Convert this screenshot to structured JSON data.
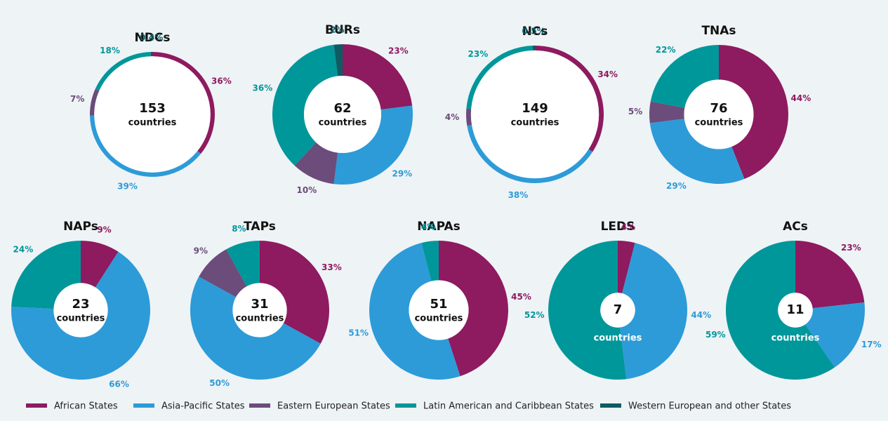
{
  "chart_data": [
    {
      "type": "pie",
      "title": "NDCs",
      "center_value": 153,
      "center_label": "countries",
      "values": [
        36,
        39,
        7,
        18,
        0.4
      ],
      "value_labels": [
        "36%",
        "39%",
        "7%",
        "18%",
        "0.4%"
      ]
    },
    {
      "type": "pie",
      "title": "BURs",
      "center_value": 62,
      "center_label": "countries",
      "values": [
        23,
        29,
        10,
        36,
        2
      ],
      "value_labels": [
        "23%",
        "29%",
        "10%",
        "36%",
        "2%"
      ]
    },
    {
      "type": "pie",
      "title": "NCs",
      "center_value": 149,
      "center_label": "countries",
      "values": [
        34,
        38,
        4,
        23,
        0.5
      ],
      "value_labels": [
        "34%",
        "38%",
        "4%",
        "23%",
        "0.5%"
      ]
    },
    {
      "type": "pie",
      "title": "TNAs",
      "center_value": 76,
      "center_label": "countries",
      "values": [
        44,
        29,
        5,
        22,
        null
      ],
      "value_labels": [
        "44%",
        "29%",
        "5%",
        "22%",
        null
      ]
    },
    {
      "type": "pie",
      "title": "NAPs",
      "center_value": 23,
      "center_label": "countries",
      "values": [
        9,
        66,
        null,
        24,
        null
      ],
      "value_labels": [
        "9%",
        "66%",
        null,
        "24%",
        null
      ]
    },
    {
      "type": "pie",
      "title": "TAPs",
      "center_value": 31,
      "center_label": "countries",
      "values": [
        33,
        50,
        9,
        8,
        null
      ],
      "value_labels": [
        "33%",
        "50%",
        "9%",
        "8%",
        null
      ]
    },
    {
      "type": "pie",
      "title": "NAPAs",
      "center_value": 51,
      "center_label": "countries",
      "values": [
        45,
        51,
        null,
        4,
        null
      ],
      "value_labels": [
        "45%",
        "51%",
        null,
        "4%",
        null
      ]
    },
    {
      "type": "pie",
      "title": "LEDS",
      "center_value": 7,
      "center_label": "countries",
      "values": [
        4,
        44,
        null,
        52,
        null
      ],
      "value_labels": [
        "4%",
        "44%",
        null,
        "52%",
        null
      ]
    },
    {
      "type": "pie",
      "title": "ACs",
      "center_value": 11,
      "center_label": "countries",
      "values": [
        23,
        17,
        null,
        59,
        null
      ],
      "value_labels": [
        "23%",
        "17%",
        null,
        "59%",
        null
      ]
    }
  ],
  "legend": [
    {
      "name": "African States",
      "color": "#8e1a5f"
    },
    {
      "name": "Asia-Pacific States",
      "color": "#2d9bd8"
    },
    {
      "name": "Eastern European States",
      "color": "#6b4c7a"
    },
    {
      "name": "Latin American and Caribbean States",
      "color": "#00979a"
    },
    {
      "name": "Western European and other States",
      "color": "#0d5c63"
    }
  ]
}
